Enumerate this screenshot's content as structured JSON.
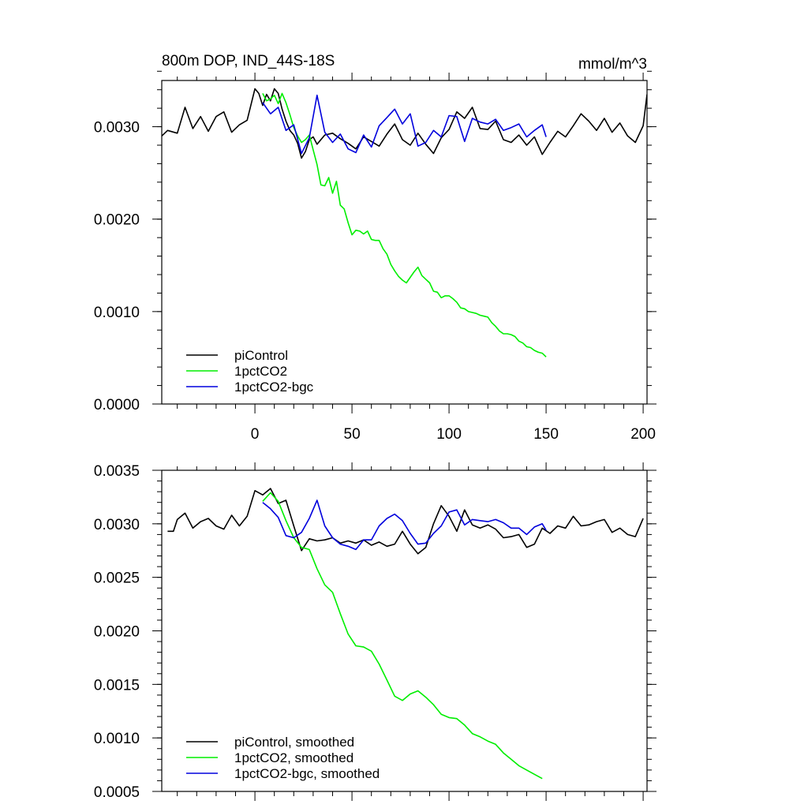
{
  "chart_data": [
    {
      "type": "line",
      "title": "800m DOP, IND_44S-18S",
      "units": "mmol/m^3",
      "xlabel": "",
      "ylabel": "",
      "xlim": [
        -48,
        202
      ],
      "ylim": [
        0.0,
        0.0035
      ],
      "xticks": [
        0,
        50,
        100,
        150,
        200
      ],
      "xtick_labels": [
        "0",
        "50",
        "100",
        "150",
        "200"
      ],
      "yticks": [
        0.0,
        0.001,
        0.002,
        0.003
      ],
      "ytick_labels": [
        "0.0000",
        "0.0010",
        "0.0020",
        "0.0030"
      ],
      "legend_position": "bottom-left",
      "grid": false,
      "series": [
        {
          "name": "piControl",
          "color": "#000000",
          "x": [
            -48,
            -45,
            -40,
            -36,
            -32,
            -28,
            -24,
            -20,
            -16,
            -12,
            -8,
            -4,
            0,
            2,
            4,
            6,
            8,
            10,
            12,
            14,
            16,
            18,
            20,
            22,
            24,
            26,
            28,
            30,
            32,
            36,
            40,
            44,
            48,
            52,
            56,
            60,
            64,
            68,
            72,
            76,
            80,
            84,
            88,
            92,
            96,
            100,
            104,
            108,
            112,
            116,
            120,
            124,
            128,
            132,
            136,
            140,
            144,
            148,
            152,
            156,
            160,
            164,
            168,
            172,
            176,
            180,
            184,
            188,
            192,
            196,
            200,
            202
          ],
          "y": [
            0.0029,
            0.00296,
            0.00293,
            0.00321,
            0.00298,
            0.00311,
            0.00295,
            0.00311,
            0.00316,
            0.00294,
            0.00302,
            0.00307,
            0.00341,
            0.00336,
            0.00323,
            0.00335,
            0.00328,
            0.00341,
            0.00336,
            0.00319,
            0.00306,
            0.00296,
            0.00291,
            0.00282,
            0.00266,
            0.00273,
            0.00286,
            0.00289,
            0.00281,
            0.00291,
            0.00293,
            0.00287,
            0.00282,
            0.00276,
            0.00289,
            0.00284,
            0.00279,
            0.00292,
            0.00303,
            0.00286,
            0.0028,
            0.00293,
            0.00281,
            0.00271,
            0.00288,
            0.00297,
            0.00316,
            0.00309,
            0.00321,
            0.00298,
            0.00297,
            0.00306,
            0.00286,
            0.00283,
            0.00291,
            0.0028,
            0.00289,
            0.0027,
            0.00283,
            0.00295,
            0.00289,
            0.00301,
            0.00314,
            0.00306,
            0.00296,
            0.00309,
            0.00294,
            0.00304,
            0.0029,
            0.00283,
            0.00301,
            0.00335
          ]
        },
        {
          "name": "1pctCO2",
          "color": "#00ee00",
          "x": [
            4,
            6,
            8,
            10,
            12,
            14,
            16,
            18,
            20,
            22,
            24,
            26,
            28,
            30,
            32,
            34,
            36,
            38,
            40,
            42,
            44,
            46,
            48,
            50,
            52,
            54,
            56,
            58,
            60,
            62,
            64,
            66,
            68,
            70,
            72,
            74,
            76,
            78,
            80,
            82,
            84,
            86,
            88,
            90,
            92,
            94,
            96,
            98,
            100,
            102,
            104,
            106,
            108,
            110,
            112,
            114,
            116,
            118,
            120,
            122,
            124,
            126,
            128,
            130,
            132,
            134,
            136,
            138,
            140,
            142,
            144,
            146,
            148,
            150
          ],
          "y": [
            0.00336,
            0.00328,
            0.0033,
            0.00334,
            0.00325,
            0.00336,
            0.00326,
            0.00313,
            0.00299,
            0.0029,
            0.00283,
            0.00286,
            0.00291,
            0.00275,
            0.00259,
            0.00237,
            0.00236,
            0.00245,
            0.00228,
            0.00241,
            0.00215,
            0.00211,
            0.00196,
            0.00183,
            0.00188,
            0.00187,
            0.00184,
            0.00187,
            0.00178,
            0.00177,
            0.00177,
            0.00168,
            0.00162,
            0.00151,
            0.00144,
            0.00138,
            0.00134,
            0.00131,
            0.00137,
            0.00143,
            0.00148,
            0.00139,
            0.00135,
            0.00131,
            0.00122,
            0.00121,
            0.00115,
            0.00117,
            0.00117,
            0.00114,
            0.0011,
            0.00104,
            0.00103,
            0.001,
            0.00099,
            0.00098,
            0.00096,
            0.00095,
            0.00094,
            0.00088,
            0.00084,
            0.00079,
            0.00076,
            0.00076,
            0.00075,
            0.00073,
            0.00068,
            0.00066,
            0.00062,
            0.00061,
            0.00058,
            0.00056,
            0.00055,
            0.00051
          ]
        },
        {
          "name": "1pctCO2-bgc",
          "color": "#0000dd",
          "x": [
            4,
            8,
            12,
            16,
            20,
            24,
            28,
            32,
            36,
            40,
            44,
            48,
            52,
            56,
            60,
            64,
            68,
            72,
            76,
            80,
            84,
            88,
            92,
            96,
            100,
            104,
            108,
            112,
            116,
            120,
            124,
            128,
            132,
            136,
            140,
            144,
            148,
            150
          ],
          "y": [
            0.00326,
            0.00314,
            0.00321,
            0.00296,
            0.00302,
            0.00271,
            0.00288,
            0.00334,
            0.00294,
            0.00283,
            0.00292,
            0.00276,
            0.00272,
            0.00291,
            0.00278,
            0.00301,
            0.0031,
            0.00319,
            0.00303,
            0.00314,
            0.00279,
            0.00283,
            0.00296,
            0.00289,
            0.00312,
            0.00311,
            0.00284,
            0.00309,
            0.00305,
            0.00303,
            0.00308,
            0.00296,
            0.00299,
            0.00303,
            0.00289,
            0.00296,
            0.00302,
            0.00289
          ]
        }
      ]
    },
    {
      "type": "line",
      "title": "",
      "xlabel": "",
      "ylabel": "",
      "xlim": [
        -48,
        202
      ],
      "ylim": [
        0.0005,
        0.0035
      ],
      "xticks": [
        0,
        50,
        100,
        150,
        200
      ],
      "yticks": [
        0.0005,
        0.001,
        0.0015,
        0.002,
        0.0025,
        0.003,
        0.0035
      ],
      "ytick_labels": [
        "0.0005",
        "0.0010",
        "0.0015",
        "0.0020",
        "0.0025",
        "0.0030",
        "0.0035"
      ],
      "legend_position": "bottom-left",
      "grid": false,
      "series": [
        {
          "name": "piControl, smoothed",
          "color": "#000000",
          "x": [
            -45,
            -42,
            -40,
            -36,
            -32,
            -28,
            -24,
            -20,
            -16,
            -12,
            -8,
            -4,
            0,
            4,
            8,
            12,
            16,
            20,
            24,
            28,
            32,
            36,
            40,
            44,
            48,
            52,
            56,
            60,
            64,
            68,
            72,
            76,
            80,
            84,
            88,
            92,
            96,
            100,
            104,
            108,
            112,
            116,
            120,
            124,
            128,
            132,
            136,
            140,
            144,
            148,
            152,
            156,
            160,
            164,
            168,
            172,
            176,
            180,
            184,
            188,
            192,
            196,
            200
          ],
          "y": [
            0.00293,
            0.00293,
            0.00304,
            0.0031,
            0.00296,
            0.00302,
            0.00305,
            0.00298,
            0.00295,
            0.00308,
            0.00298,
            0.00307,
            0.00331,
            0.00327,
            0.00333,
            0.00319,
            0.00322,
            0.00298,
            0.00275,
            0.00286,
            0.00284,
            0.00285,
            0.00287,
            0.00282,
            0.00284,
            0.00282,
            0.00285,
            0.0028,
            0.00283,
            0.00279,
            0.00281,
            0.00293,
            0.00281,
            0.00272,
            0.00278,
            0.003,
            0.00317,
            0.00307,
            0.00293,
            0.00313,
            0.00299,
            0.00296,
            0.00299,
            0.00295,
            0.00287,
            0.00288,
            0.0029,
            0.00278,
            0.00281,
            0.00296,
            0.00291,
            0.00298,
            0.00296,
            0.00307,
            0.00298,
            0.00299,
            0.00302,
            0.00304,
            0.00292,
            0.00296,
            0.0029,
            0.00288,
            0.00305
          ]
        },
        {
          "name": "1pctCO2, smoothed",
          "color": "#00ee00",
          "x": [
            4,
            8,
            12,
            16,
            20,
            24,
            28,
            32,
            36,
            40,
            44,
            48,
            52,
            56,
            60,
            64,
            68,
            72,
            76,
            80,
            84,
            88,
            92,
            96,
            100,
            104,
            108,
            112,
            116,
            120,
            124,
            128,
            132,
            136,
            140,
            144,
            148
          ],
          "y": [
            0.00321,
            0.00329,
            0.00321,
            0.00303,
            0.00287,
            0.00278,
            0.00276,
            0.00258,
            0.00243,
            0.00236,
            0.00216,
            0.00197,
            0.00186,
            0.00185,
            0.00181,
            0.00169,
            0.00154,
            0.00139,
            0.00135,
            0.00141,
            0.00144,
            0.00138,
            0.00131,
            0.00122,
            0.00119,
            0.00118,
            0.00112,
            0.00104,
            0.00101,
            0.00097,
            0.00094,
            0.00086,
            0.0008,
            0.00074,
            0.0007,
            0.00066,
            0.00062
          ]
        },
        {
          "name": "1pctCO2-bgc, smoothed",
          "color": "#0000dd",
          "x": [
            4,
            8,
            12,
            16,
            20,
            24,
            28,
            32,
            36,
            40,
            44,
            48,
            52,
            56,
            60,
            64,
            68,
            72,
            76,
            80,
            84,
            88,
            92,
            96,
            100,
            104,
            108,
            112,
            116,
            120,
            124,
            128,
            132,
            136,
            140,
            144,
            148,
            150
          ],
          "y": [
            0.0032,
            0.00314,
            0.00306,
            0.00289,
            0.00287,
            0.00292,
            0.00305,
            0.00322,
            0.00298,
            0.00287,
            0.00281,
            0.00279,
            0.00276,
            0.00285,
            0.00285,
            0.00298,
            0.00305,
            0.00309,
            0.00303,
            0.00291,
            0.00281,
            0.00282,
            0.00291,
            0.00298,
            0.00311,
            0.00313,
            0.00299,
            0.00304,
            0.00303,
            0.00302,
            0.00304,
            0.00301,
            0.00296,
            0.00296,
            0.0029,
            0.00297,
            0.003,
            0.00294
          ]
        }
      ]
    }
  ]
}
